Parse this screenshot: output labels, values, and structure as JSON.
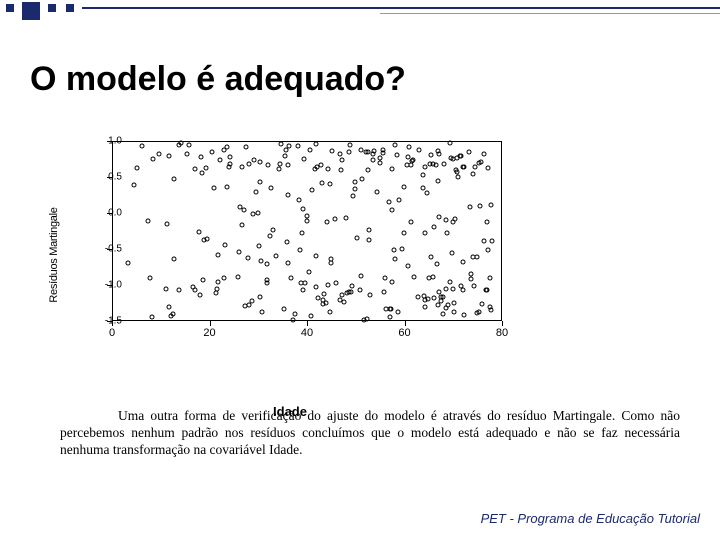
{
  "decoration": {
    "color": "#1a2a6c",
    "small_sq_size": 8,
    "large_sq_size": 18
  },
  "title": "O modelo é adequado?",
  "chart": {
    "type": "scatter",
    "xlabel": "Idade",
    "ylabel": "Resíduos Martingale",
    "xlim": [
      0,
      80
    ],
    "ylim": [
      -1.5,
      1.0
    ],
    "xticks": [
      0,
      20,
      40,
      60,
      80
    ],
    "yticks": [
      -1.5,
      -1.0,
      -0.5,
      0.0,
      0.5,
      1.0
    ],
    "ytick_labels": [
      "-1.5",
      "-1.0",
      "-0.5",
      "0.0",
      "0.5",
      "1.0"
    ],
    "marker": "open-circle",
    "marker_size": 5,
    "marker_color": "#000000",
    "background_color": "#ffffff",
    "border_color": "#000000",
    "label_fontsize": 12,
    "tick_fontsize": 10,
    "n_points": 280,
    "x_range": [
      2,
      78
    ],
    "y_distribution": "roughly uniform with edge-density, no trend"
  },
  "body_text": "Uma outra forma de verificação do ajuste do modelo é através do resíduo Martingale. Como não percebemos nenhum padrão nos resíduos concluímos que o modelo está adequado e não se faz necessária nenhuma transformação na covariável Idade.",
  "footer": "PET - Programa de Educação Tutorial"
}
